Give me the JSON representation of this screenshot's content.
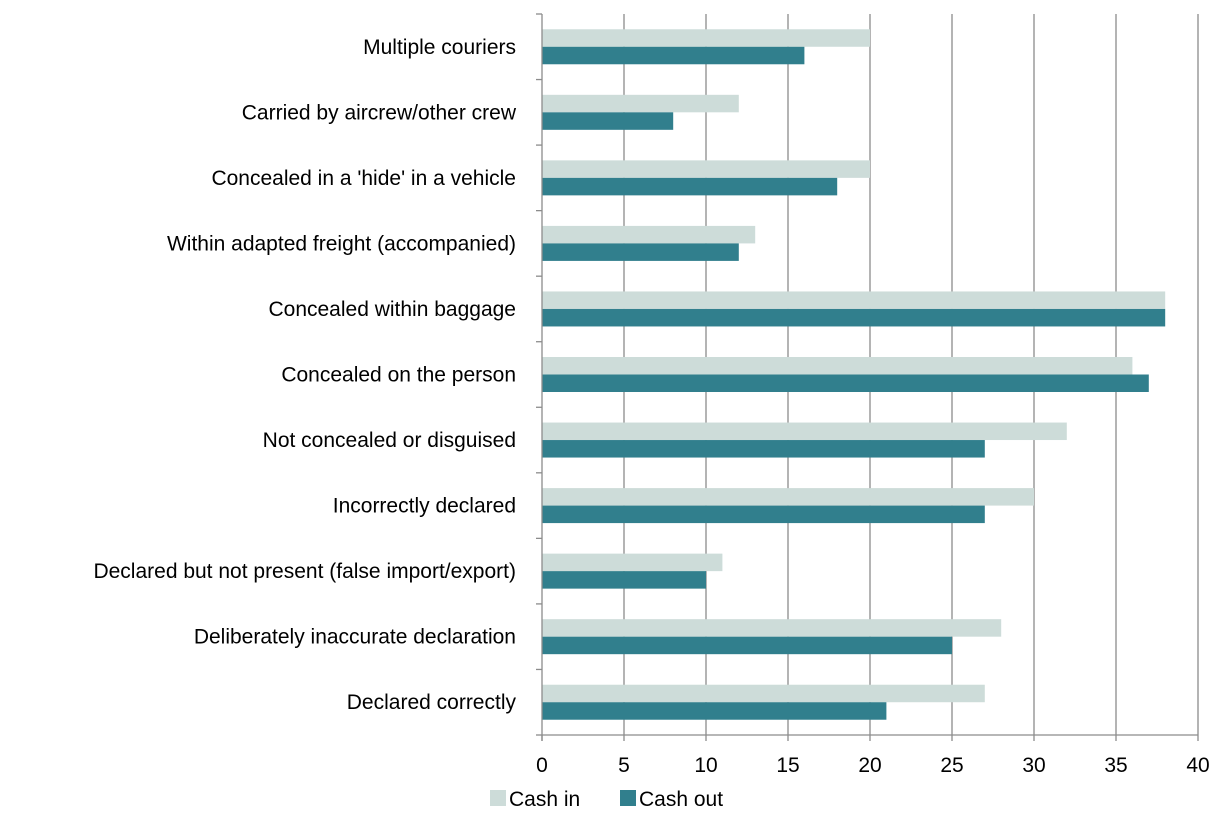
{
  "chart_data": {
    "type": "bar",
    "orientation": "horizontal",
    "title": "",
    "xlabel": "",
    "ylabel": "",
    "categories": [
      "Multiple couriers",
      "Carried by aircrew/other crew",
      "Concealed in a 'hide' in a vehicle",
      "Within adapted freight (accompanied)",
      "Concealed within baggage",
      "Concealed on the person",
      "Not concealed or disguised",
      "Incorrectly declared",
      "Declared but not present (false import/export)",
      "Deliberately inaccurate declaration",
      "Declared correctly"
    ],
    "series": [
      {
        "name": "Cash in",
        "color": "#cddcd9",
        "values": [
          20,
          12,
          20,
          13,
          38,
          36,
          32,
          30,
          11,
          28,
          27
        ]
      },
      {
        "name": "Cash out",
        "color": "#317f8d",
        "values": [
          16,
          8,
          18,
          12,
          38,
          37,
          27,
          27,
          10,
          25,
          21
        ]
      }
    ],
    "xlim": [
      0,
      40
    ],
    "xticks": [
      0,
      5,
      10,
      15,
      20,
      25,
      30,
      35,
      40
    ],
    "grid": "vertical",
    "gridColor": "#8c8c8c",
    "legend": "bottom-center"
  }
}
